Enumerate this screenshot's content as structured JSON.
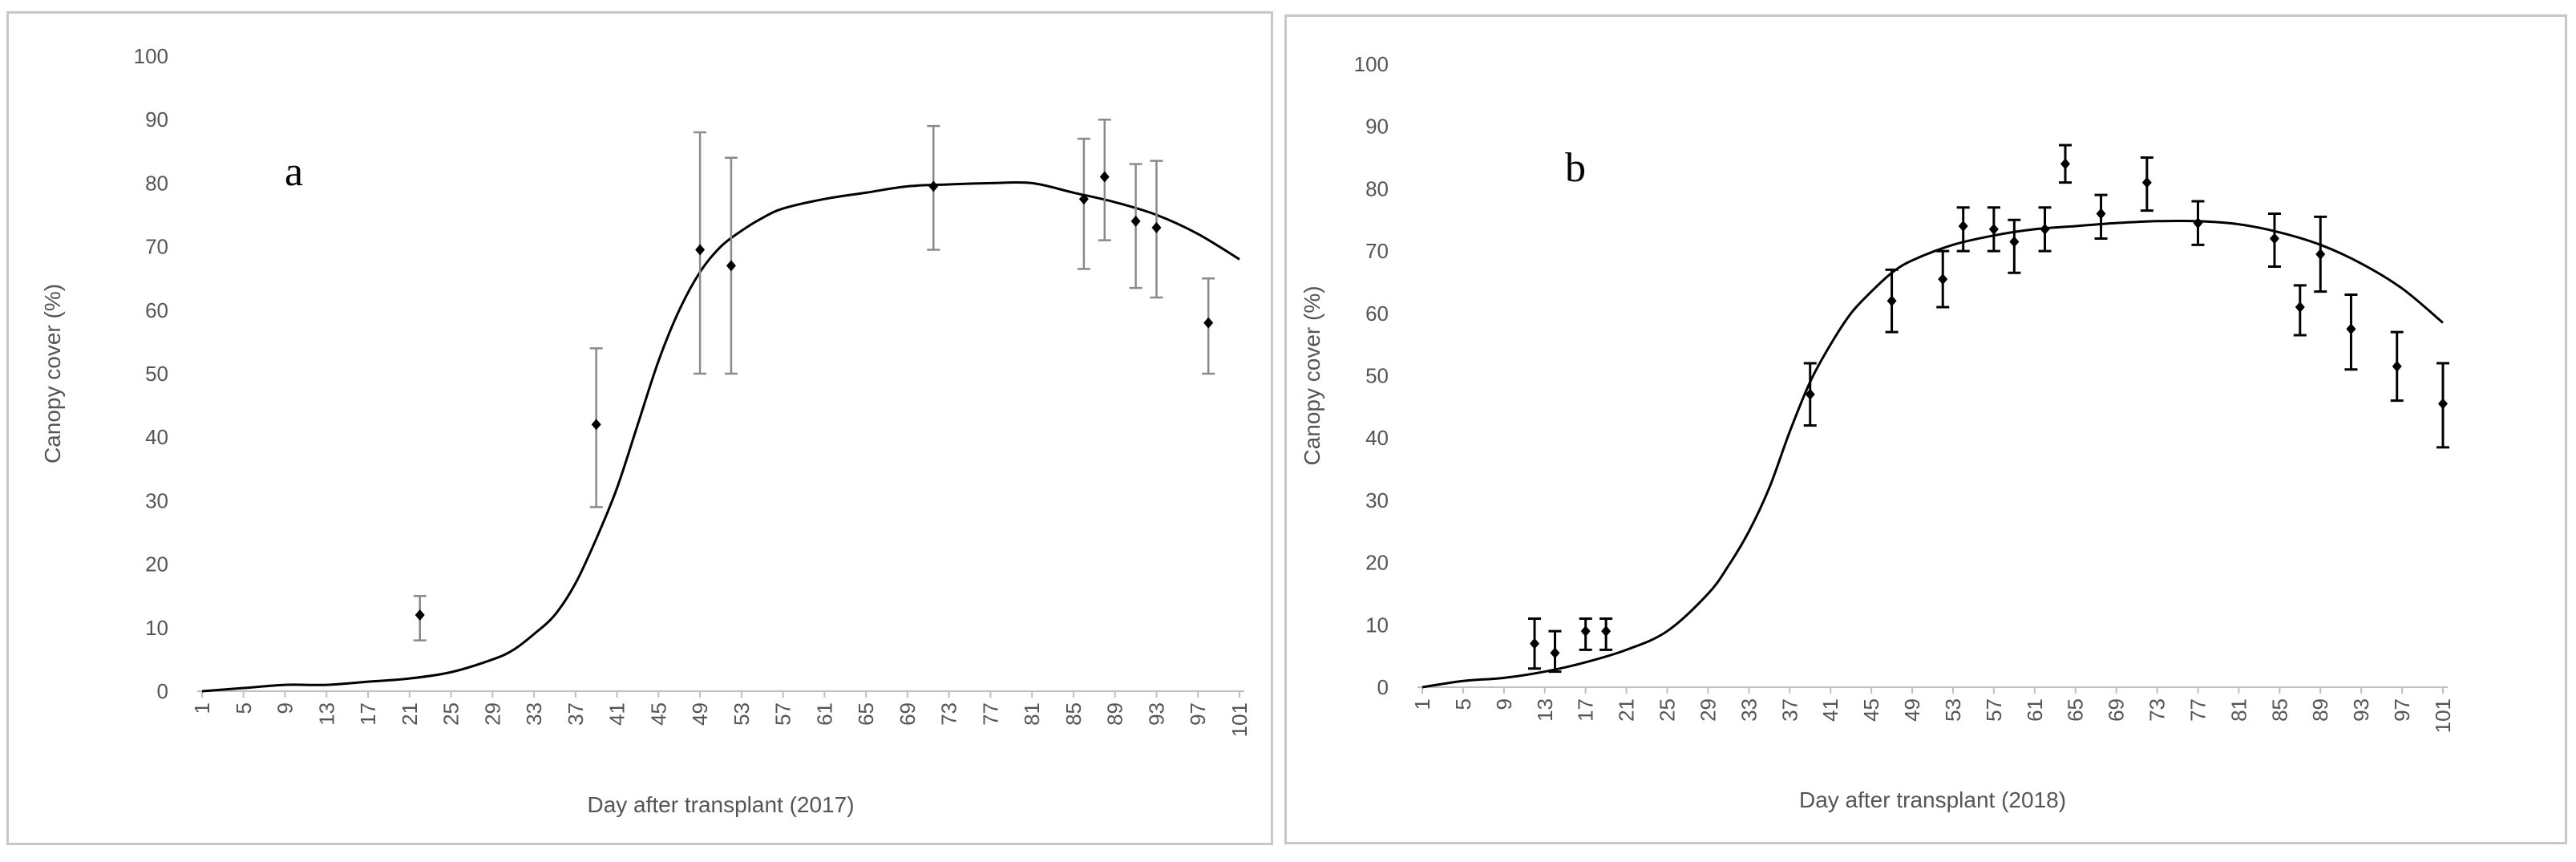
{
  "chart_data": [
    {
      "type": "scatter",
      "panel_label": "a",
      "xlabel": "Day after transplant  (2017)",
      "ylabel": "Canopy cover (%)",
      "ylim": [
        0,
        100
      ],
      "yticks": [
        "0",
        "10",
        "20",
        "30",
        "40",
        "50",
        "60",
        "70",
        "80",
        "90",
        "100"
      ],
      "xlim": [
        1,
        101
      ],
      "xticks": [
        "1",
        "5",
        "9",
        "13",
        "17",
        "21",
        "25",
        "29",
        "33",
        "37",
        "41",
        "45",
        "49",
        "53",
        "57",
        "61",
        "65",
        "69",
        "73",
        "77",
        "81",
        "85",
        "89",
        "93",
        "97",
        "101"
      ],
      "grid": false,
      "legend": "none",
      "series": [
        {
          "kind": "observed-with-error-bars",
          "points": [
            {
              "x": 22,
              "y": 12,
              "err_low": 8,
              "err_high": 15
            },
            {
              "x": 39,
              "y": 42,
              "err_low": 29,
              "err_high": 54
            },
            {
              "x": 49,
              "y": 69.5,
              "err_low": 50,
              "err_high": 88
            },
            {
              "x": 52,
              "y": 67,
              "err_low": 50,
              "err_high": 84
            },
            {
              "x": 71.5,
              "y": 79.5,
              "err_low": 69.5,
              "err_high": 89
            },
            {
              "x": 86,
              "y": 77.5,
              "err_low": 66.5,
              "err_high": 87
            },
            {
              "x": 88,
              "y": 81,
              "err_low": 71,
              "err_high": 90
            },
            {
              "x": 91,
              "y": 74,
              "err_low": 63.5,
              "err_high": 83
            },
            {
              "x": 93,
              "y": 73,
              "err_low": 62,
              "err_high": 83.5
            },
            {
              "x": 98,
              "y": 58,
              "err_low": 50,
              "err_high": 65
            }
          ]
        },
        {
          "kind": "fitted-curve",
          "x": [
            1,
            5,
            9,
            13,
            17,
            21,
            25,
            29,
            31,
            33,
            35,
            37,
            39,
            41,
            43,
            45,
            47,
            49,
            51,
            53,
            55,
            57,
            61,
            65,
            69,
            73,
            77,
            81,
            85,
            89,
            93,
            97,
            101
          ],
          "y": [
            0,
            0.5,
            1,
            1,
            1.5,
            2,
            3,
            5,
            6.5,
            9,
            12,
            17,
            24,
            32,
            42,
            52,
            60,
            66,
            70,
            72.5,
            74.5,
            76,
            77.5,
            78.5,
            79.5,
            79.8,
            80,
            80,
            78.5,
            77,
            75,
            72,
            68
          ]
        }
      ]
    },
    {
      "type": "scatter",
      "panel_label": "b",
      "xlabel": "Day after transplant (2018)",
      "ylabel": "Canopy cover (%)",
      "ylim": [
        0,
        100
      ],
      "yticks": [
        "0",
        "10",
        "20",
        "30",
        "40",
        "50",
        "60",
        "70",
        "80",
        "90",
        "100"
      ],
      "xlim": [
        1,
        101
      ],
      "xticks": [
        "1",
        "5",
        "9",
        "13",
        "17",
        "21",
        "25",
        "29",
        "33",
        "37",
        "41",
        "45",
        "49",
        "53",
        "57",
        "61",
        "65",
        "69",
        "73",
        "77",
        "81",
        "85",
        "89",
        "93",
        "97",
        "101"
      ],
      "grid": false,
      "legend": "none",
      "series": [
        {
          "kind": "observed-with-error-bars",
          "points": [
            {
              "x": 12,
              "y": 7,
              "err_low": 3,
              "err_high": 11
            },
            {
              "x": 14,
              "y": 5.5,
              "err_low": 2.5,
              "err_high": 9
            },
            {
              "x": 17,
              "y": 9,
              "err_low": 6,
              "err_high": 11
            },
            {
              "x": 19,
              "y": 9,
              "err_low": 6,
              "err_high": 11
            },
            {
              "x": 39,
              "y": 47,
              "err_low": 42,
              "err_high": 52
            },
            {
              "x": 47,
              "y": 62,
              "err_low": 57,
              "err_high": 67
            },
            {
              "x": 52,
              "y": 65.5,
              "err_low": 61,
              "err_high": 70
            },
            {
              "x": 54,
              "y": 74,
              "err_low": 70,
              "err_high": 77
            },
            {
              "x": 57,
              "y": 73.5,
              "err_low": 70,
              "err_high": 77
            },
            {
              "x": 59,
              "y": 71.5,
              "err_low": 66.5,
              "err_high": 75
            },
            {
              "x": 62,
              "y": 73.5,
              "err_low": 70,
              "err_high": 77
            },
            {
              "x": 64,
              "y": 84,
              "err_low": 81,
              "err_high": 87
            },
            {
              "x": 67.5,
              "y": 76,
              "err_low": 72,
              "err_high": 79
            },
            {
              "x": 72,
              "y": 81,
              "err_low": 76.5,
              "err_high": 85
            },
            {
              "x": 77,
              "y": 74.5,
              "err_low": 71,
              "err_high": 78
            },
            {
              "x": 84.5,
              "y": 72,
              "err_low": 67.5,
              "err_high": 76
            },
            {
              "x": 87,
              "y": 61,
              "err_low": 56.5,
              "err_high": 64.5
            },
            {
              "x": 89,
              "y": 69.5,
              "err_low": 63.5,
              "err_high": 75.5
            },
            {
              "x": 92,
              "y": 57.5,
              "err_low": 51,
              "err_high": 63
            },
            {
              "x": 96.5,
              "y": 51.5,
              "err_low": 46,
              "err_high": 57
            },
            {
              "x": 101,
              "y": 45.5,
              "err_low": 38.5,
              "err_high": 52
            }
          ]
        },
        {
          "kind": "fitted-curve",
          "x": [
            1,
            5,
            9,
            13,
            17,
            21,
            25,
            29,
            31,
            33,
            35,
            37,
            39,
            41,
            43,
            45,
            47,
            49,
            53,
            57,
            61,
            65,
            69,
            73,
            77,
            81,
            85,
            89,
            93,
            97,
            101
          ],
          "y": [
            0,
            1,
            1.5,
            2.5,
            4,
            6,
            9,
            15,
            19.5,
            25,
            32,
            41,
            49,
            55,
            60,
            63.5,
            66.5,
            68.5,
            71,
            72.5,
            73.5,
            74,
            74.5,
            74.8,
            74.8,
            74.3,
            73,
            71,
            68,
            64,
            58.5
          ]
        }
      ]
    }
  ]
}
